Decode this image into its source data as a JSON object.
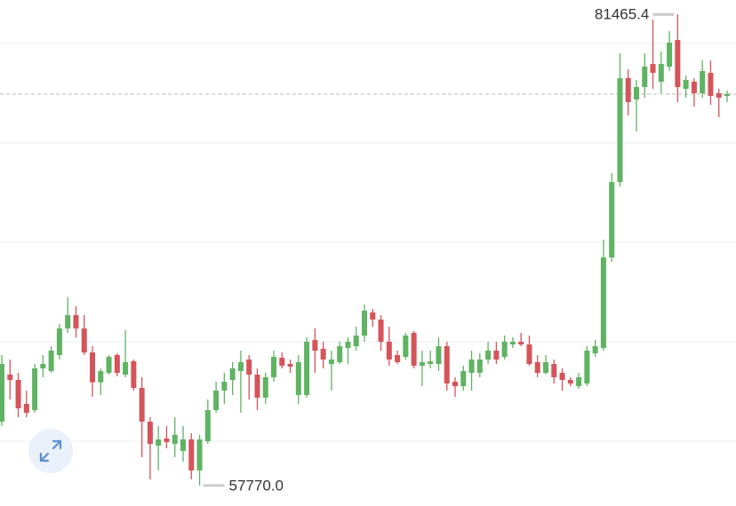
{
  "chart_data": {
    "type": "candlestick",
    "open": [
      60983,
      63349,
      63081,
      61876,
      61563,
      63661,
      63527,
      64331,
      65670,
      66340,
      65670,
      64464,
      62964,
      63438,
      64331,
      63349,
      64018,
      62679,
      60983,
      59777,
      60134,
      59866,
      59509,
      60090,
      58528,
      60000,
      61563,
      62545,
      63081,
      63527,
      64107,
      63349,
      62188,
      63215,
      64197,
      63884,
      62321,
      62321,
      65090,
      64643,
      63884,
      63974,
      64688,
      64777,
      65313,
      66474,
      66117,
      65001,
      64331,
      64241,
      65447,
      63795,
      63884,
      63884,
      64777,
      62991,
      62768,
      63438,
      63438,
      64107,
      64554,
      64241,
      64866,
      65001,
      64866,
      63974,
      63438,
      63884,
      63438,
      63081,
      62768,
      62902,
      64420,
      64688,
      69241,
      73035,
      78259,
      77187,
      77812,
      78973,
      78080,
      78839,
      80178,
      77723,
      78080,
      77500,
      78527,
      77500,
      77366
    ],
    "high": [
      64331,
      64107,
      63438,
      62545,
      63884,
      64331,
      64777,
      65893,
      67233,
      66786,
      66340,
      64777,
      63661,
      64331,
      64420,
      65581,
      64107,
      63215,
      61206,
      60760,
      60760,
      61206,
      60760,
      60403,
      60320,
      62098,
      62991,
      63438,
      63974,
      64554,
      64331,
      63661,
      63438,
      64554,
      64464,
      64107,
      64331,
      65224,
      65670,
      65001,
      64554,
      65001,
      65224,
      65759,
      66876,
      66652,
      66340,
      65759,
      64554,
      65447,
      65536,
      64554,
      64554,
      65224,
      65001,
      63215,
      63795,
      64554,
      64420,
      65001,
      65001,
      65313,
      65224,
      65447,
      65313,
      64331,
      64331,
      64107,
      63661,
      63215,
      63438,
      64777,
      65090,
      70134,
      73482,
      79509,
      78705,
      78170,
      79509,
      81205,
      79598,
      80625,
      81465.4,
      78393,
      78259,
      79152,
      79152,
      77723,
      77634
    ],
    "low": [
      60760,
      62099,
      61206,
      61206,
      61430,
      63215,
      63438,
      64107,
      65447,
      65224,
      64331,
      62233,
      62321,
      63349,
      63260,
      63215,
      62545,
      59197,
      58081,
      58528,
      59643,
      59197,
      58974,
      58081,
      57770,
      59867,
      61430,
      61876,
      62321,
      61430,
      62098,
      61563,
      61876,
      62991,
      63661,
      63438,
      61876,
      62188,
      63438,
      63661,
      62545,
      63884,
      63884,
      64554,
      65001,
      65759,
      64554,
      63795,
      63884,
      64107,
      63661,
      62768,
      63661,
      63527,
      62545,
      62233,
      62545,
      62545,
      63215,
      63884,
      63884,
      64107,
      64688,
      64777,
      63795,
      63215,
      63349,
      62902,
      62545,
      62768,
      62634,
      62768,
      64241,
      64554,
      69018,
      72812,
      76384,
      75580,
      77277,
      77723,
      77500,
      78616,
      77053,
      77277,
      76830,
      77277,
      76920,
      76295,
      77053
    ],
    "close": [
      63884,
      63081,
      61653,
      61430,
      63661,
      63884,
      64554,
      65670,
      66340,
      65670,
      64464,
      62964,
      63527,
      64241,
      63438,
      63974,
      62679,
      60983,
      59867,
      60090,
      59956,
      60322,
      60090,
      58528,
      60090,
      61563,
      62545,
      62991,
      63661,
      63974,
      63349,
      62188,
      63215,
      64241,
      63795,
      63750,
      63974,
      65001,
      64554,
      64107,
      64107,
      64777,
      65001,
      65313,
      66563,
      66117,
      65001,
      64107,
      63974,
      65313,
      63795,
      63974,
      64018,
      64777,
      62902,
      62768,
      63527,
      64107,
      64107,
      64554,
      64107,
      65001,
      65001,
      64866,
      63884,
      63438,
      63974,
      63215,
      63081,
      62902,
      63215,
      64554,
      64777,
      69241,
      73035,
      78259,
      77053,
      77812,
      78839,
      78527,
      78973,
      80045,
      77812,
      78170,
      77500,
      78616,
      77366,
      77277,
      77455
    ],
    "up_color": "#5fb362",
    "down_color": "#d5545a",
    "ylim": [
      56740,
      82190
    ],
    "yticks": [
      60000,
      65000,
      70000,
      75000,
      80000
    ],
    "grid": true,
    "show_tick_labels": false,
    "annotations": [
      {
        "value": 81465.4,
        "label": "81465.4"
      },
      {
        "value": 57770,
        "label": "57770.0"
      }
    ]
  }
}
